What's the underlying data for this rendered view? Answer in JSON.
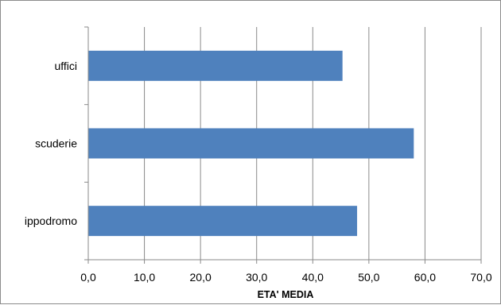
{
  "chart_data": {
    "type": "bar",
    "orientation": "horizontal",
    "categories": [
      "uffici",
      "scuderie",
      "ippodromo"
    ],
    "values": [
      45.3,
      58.0,
      47.9
    ],
    "xlabel": "ETA' MEDIA",
    "ylabel": "",
    "xlim": [
      0,
      70
    ],
    "xticks": [
      0,
      10,
      20,
      30,
      40,
      50,
      60,
      70
    ],
    "xtick_labels": [
      "0,0",
      "10,0",
      "20,0",
      "30,0",
      "40,0",
      "50,0",
      "60,0",
      "70,0"
    ],
    "grid": true,
    "legend": "none",
    "bar_color": "#4f81bd"
  }
}
